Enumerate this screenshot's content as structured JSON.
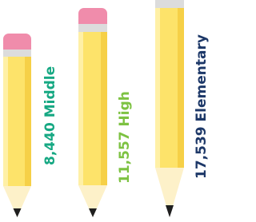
{
  "items": [
    {
      "count": "8,440",
      "name": "Middle",
      "color": "#16a883"
    },
    {
      "count": "11,557",
      "name": "High",
      "color": "#7dc242"
    },
    {
      "count": "17,539",
      "name": "Elementary",
      "color": "#1d3868"
    }
  ]
}
